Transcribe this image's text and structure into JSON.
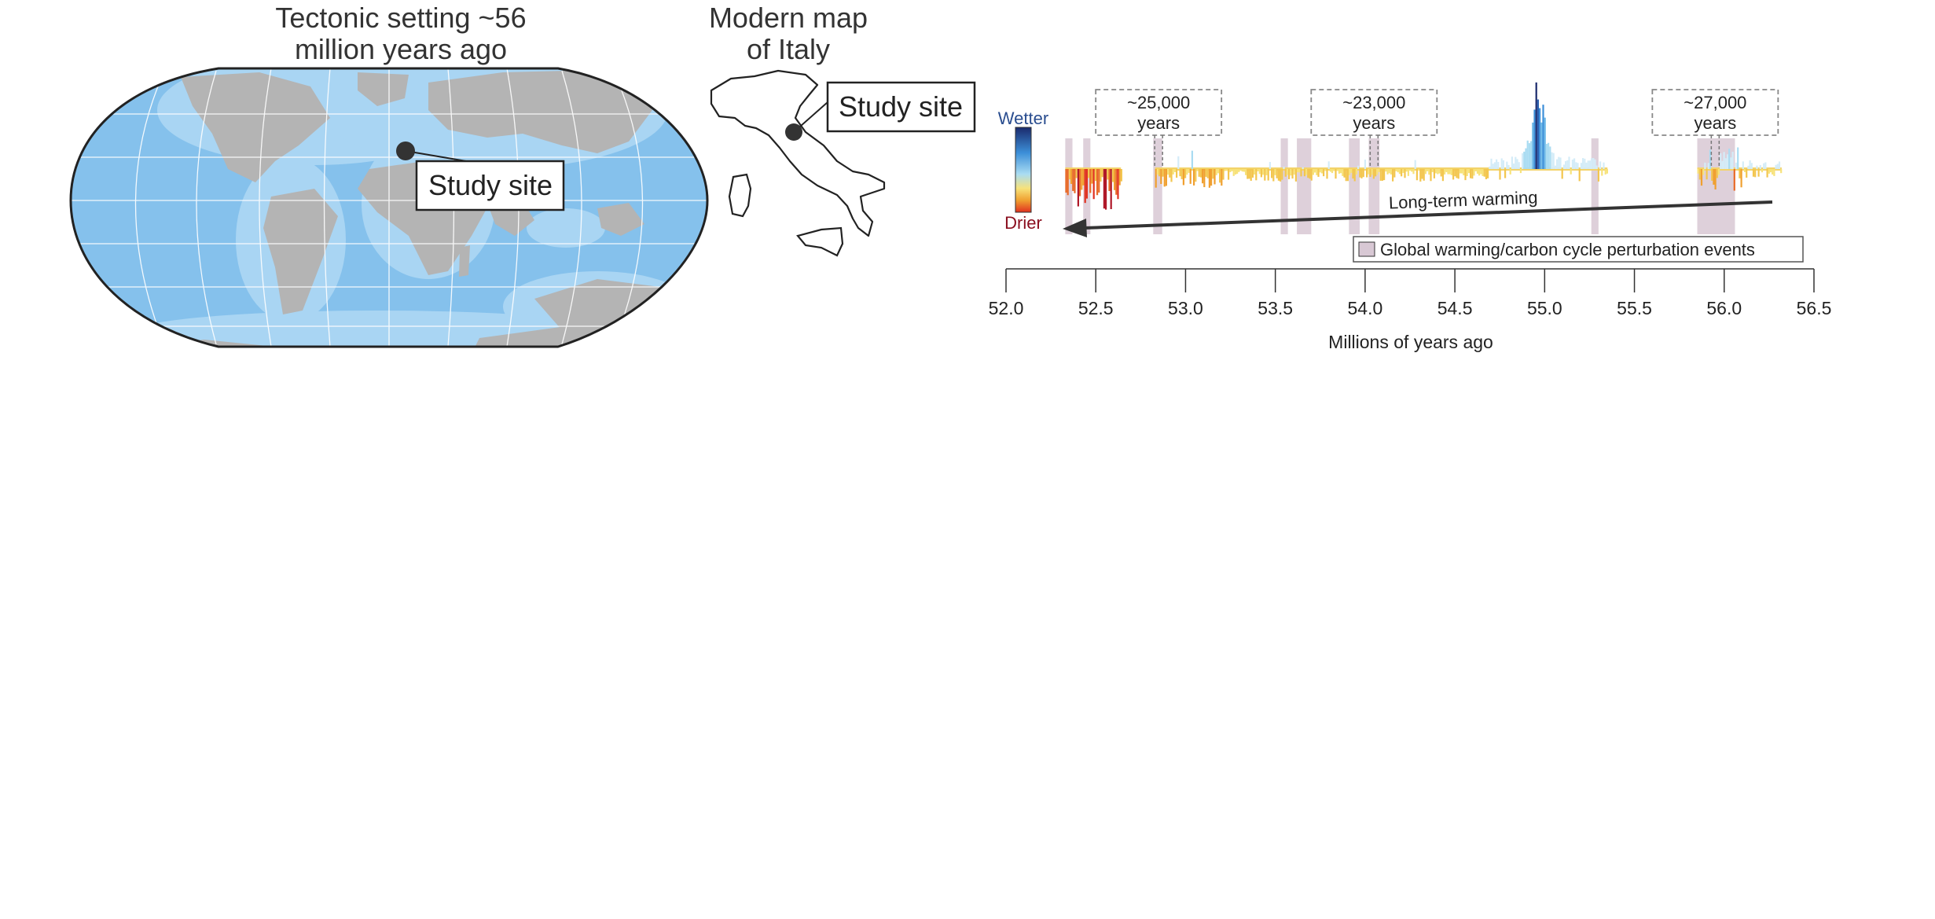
{
  "left_panel": {
    "title_line1": "Tectonic setting ~56",
    "title_line2": "million years ago",
    "study_site_label": "Study site",
    "colors": {
      "ocean": "#85c1ec",
      "shelf": "#a9d5f3",
      "land": "#b4b4b4"
    }
  },
  "middle_panel": {
    "title_line1": "Modern map",
    "title_line2": "of Italy",
    "study_site_label": "Study site"
  },
  "chart_data": {
    "type": "area",
    "xlabel": "Millions of years ago",
    "x_ticks": [
      "52.0",
      "52.5",
      "53.0",
      "53.5",
      "54.0",
      "54.5",
      "55.0",
      "55.5",
      "56.0",
      "56.5"
    ],
    "xlim": [
      52.0,
      56.5
    ],
    "colorbar": {
      "top_label": "Wetter",
      "bottom_label": "Drier",
      "colors": [
        "#1a2a6c",
        "#3c8fd8",
        "#a9dcf2",
        "#f7e27a",
        "#f0a030",
        "#e03020"
      ]
    },
    "cycle_annotations": [
      {
        "label_line1": "~25,000",
        "label_line2": "years",
        "x": 52.85
      },
      {
        "label_line1": "~23,000",
        "label_line2": "years",
        "x": 54.05
      },
      {
        "label_line1": "~27,000",
        "label_line2": "years",
        "x": 55.95
      }
    ],
    "trend_label": "Long-term warming",
    "legend_label": "Global warming/carbon cycle perturbation events",
    "legend_color": "#d8c8d4",
    "event_intervals": [
      [
        52.33,
        52.37
      ],
      [
        52.43,
        52.47
      ],
      [
        52.82,
        52.87
      ],
      [
        53.53,
        53.57
      ],
      [
        53.62,
        53.7
      ],
      [
        53.91,
        53.97
      ],
      [
        54.02,
        54.08
      ],
      [
        55.26,
        55.3
      ],
      [
        55.85,
        56.06
      ]
    ],
    "data_segments": [
      [
        52.33,
        52.64
      ],
      [
        52.83,
        55.35
      ],
      [
        55.85,
        56.32
      ]
    ]
  }
}
